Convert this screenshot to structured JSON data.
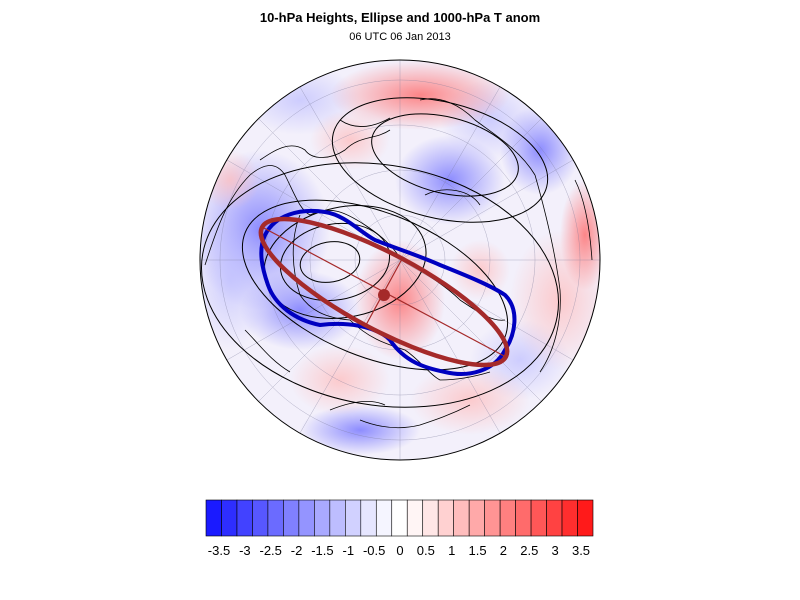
{
  "title": "10-hPa Heights, Ellipse and 1000-hPa T anom",
  "subtitle": "06 UTC 06 Jan 2013",
  "map": {
    "projection": "polar-stereographic-north",
    "fields": [
      {
        "name": "10-hPa Heights",
        "style": "black contours"
      },
      {
        "name": "1000-hPa T anom",
        "style": "shaded"
      },
      {
        "name": "Ellipse",
        "color": "#a52a2a"
      },
      {
        "name": "vortex edge contour",
        "color": "#0000c0"
      }
    ]
  },
  "colorbar": {
    "labels": [
      "-3.5",
      "-3",
      "-2.5",
      "-2",
      "-1.5",
      "-1",
      "-0.5",
      "0",
      "0.5",
      "1",
      "1.5",
      "2",
      "2.5",
      "3",
      "3.5"
    ],
    "colors": [
      "#1a1aff",
      "#2e2eff",
      "#4242ff",
      "#5757ff",
      "#6b6bff",
      "#8080ff",
      "#9494ff",
      "#a9a9ff",
      "#bdbdff",
      "#d1d1ff",
      "#e6e6ff",
      "#f5f5ff",
      "#ffffff",
      "#fff5f5",
      "#ffe6e6",
      "#ffd1d1",
      "#ffbdbd",
      "#ffa9a9",
      "#ff9494",
      "#ff8080",
      "#ff6b6b",
      "#ff5757",
      "#ff4242",
      "#ff2e2e",
      "#ff1a1a"
    ]
  }
}
